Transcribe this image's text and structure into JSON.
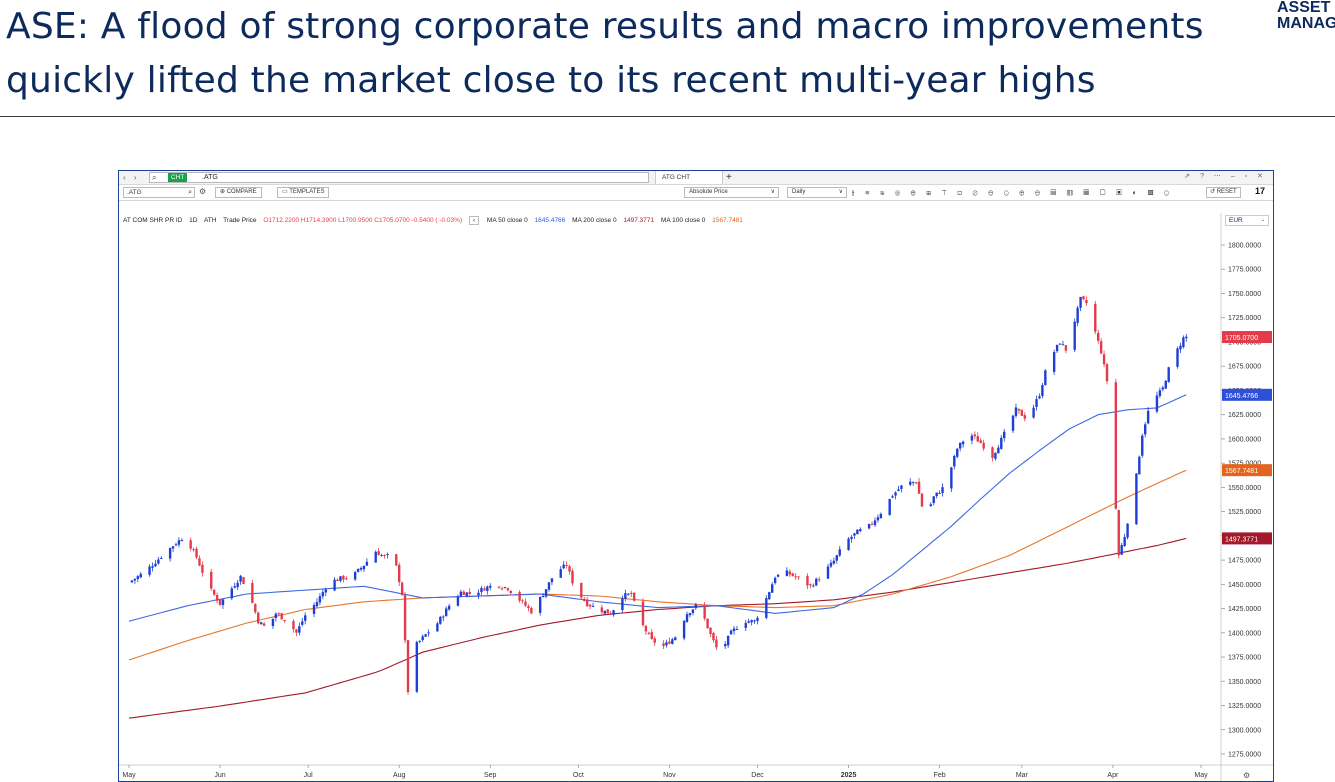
{
  "slide": {
    "title_line1": "ASE: A flood of strong corporate results and macro improvements",
    "title_line2": "quickly lifted the market close to its recent multi-year highs",
    "logo_line1": "ASSET",
    "logo_line2": "MANAG"
  },
  "terminal": {
    "nav_arrows": "‹ ›",
    "cht_tag": "CHT",
    "cht_value": ".ATG",
    "tab_label": "ATG CHT",
    "plus": "+",
    "window_controls": "⇗ ? ⋯ – ▫ ✕",
    "ticker_value": ".ATG",
    "compare_label": "COMPARE",
    "templates_label": "TEMPLATES",
    "price_mode": "Absolute Price",
    "interval": "Daily",
    "reset_label": "RESET",
    "tv_logo": "17",
    "tool_icons": "⫲ ≡ ≋ ⊜ ⊕ ⊞ ⊤ ⊡ ⊘ ⊖ ⊙ ⊕ ⊖ ▤ ▥ ▦ ▢ ▣ ◐ ▩ ⊙",
    "currency": "EUR"
  },
  "legend": {
    "instrument": "AT COM SHR PR ID",
    "interval": "1D",
    "exchange": "ATH",
    "price_type": "Trade Price",
    "ohlc": "O1712.2200  H1714.3900  L1700.9500  C1705.0700  -0.5400 ( -0.03%)",
    "ma50_label": "MA 50 close 0",
    "ma50_value": "1645.4766",
    "ma200_label": "MA 200 close 0",
    "ma200_value": "1497.3771",
    "ma100_label": "MA 100 close 0",
    "ma100_value": "1567.7481"
  },
  "colors": {
    "up": "#1e3fd6",
    "down": "#e23b4c",
    "ma50": "#4169e1",
    "ma100": "#e8762c",
    "ma200": "#a3192b",
    "last_price_tag": "#e23b4c",
    "ma50_tag": "#2e4fd8",
    "ma100_tag": "#e2641e",
    "ma200_tag": "#a3192b"
  },
  "chart_data": {
    "type": "candlestick",
    "title": "",
    "xlabel": "",
    "ylabel": "",
    "ylim": [
      1265,
      1820
    ],
    "y_ticks": [
      "1800.0000",
      "1775.0000",
      "1750.0000",
      "1725.0000",
      "1700.0000",
      "1675.0000",
      "1650.0000",
      "1625.0000",
      "1600.0000",
      "1575.0000",
      "1550.0000",
      "1525.0000",
      "1500.0000",
      "1475.0000",
      "1450.0000",
      "1425.0000",
      "1400.0000",
      "1375.0000",
      "1350.0000",
      "1325.0000",
      "1300.0000",
      "1275.0000"
    ],
    "x_labels": [
      {
        "label": "May",
        "day": 0
      },
      {
        "label": "Jun",
        "day": 31
      },
      {
        "label": "Jul",
        "day": 61
      },
      {
        "label": "Aug",
        "day": 92
      },
      {
        "label": "Sep",
        "day": 123
      },
      {
        "label": "Oct",
        "day": 153
      },
      {
        "label": "Nov",
        "day": 184
      },
      {
        "label": "Dec",
        "day": 214
      },
      {
        "label": "2025",
        "day": 245
      },
      {
        "label": "Feb",
        "day": 276
      },
      {
        "label": "Mar",
        "day": 304
      },
      {
        "label": "Apr",
        "day": 335
      },
      {
        "label": "May",
        "day": 365
      }
    ],
    "close_anchors": [
      [
        0,
        1452
      ],
      [
        5,
        1462
      ],
      [
        10,
        1476
      ],
      [
        15,
        1490
      ],
      [
        19,
        1500
      ],
      [
        23,
        1478
      ],
      [
        27,
        1448
      ],
      [
        31,
        1430
      ],
      [
        35,
        1446
      ],
      [
        38,
        1458
      ],
      [
        41,
        1440
      ],
      [
        44,
        1412
      ],
      [
        47,
        1404
      ],
      [
        50,
        1420
      ],
      [
        54,
        1412
      ],
      [
        57,
        1400
      ],
      [
        60,
        1418
      ],
      [
        64,
        1432
      ],
      [
        68,
        1452
      ],
      [
        72,
        1456
      ],
      [
        76,
        1458
      ],
      [
        80,
        1470
      ],
      [
        84,
        1484
      ],
      [
        87,
        1478
      ],
      [
        90,
        1482
      ],
      [
        93,
        1440
      ],
      [
        95,
        1340
      ],
      [
        97,
        1385
      ],
      [
        101,
        1398
      ],
      [
        105,
        1410
      ],
      [
        109,
        1428
      ],
      [
        113,
        1442
      ],
      [
        117,
        1440
      ],
      [
        121,
        1446
      ],
      [
        125,
        1450
      ],
      [
        129,
        1446
      ],
      [
        133,
        1434
      ],
      [
        137,
        1422
      ],
      [
        141,
        1440
      ],
      [
        145,
        1462
      ],
      [
        149,
        1470
      ],
      [
        152,
        1444
      ],
      [
        156,
        1430
      ],
      [
        160,
        1424
      ],
      [
        164,
        1420
      ],
      [
        168,
        1438
      ],
      [
        171,
        1440
      ],
      [
        174,
        1412
      ],
      [
        178,
        1392
      ],
      [
        182,
        1386
      ],
      [
        186,
        1396
      ],
      [
        190,
        1420
      ],
      [
        194,
        1430
      ],
      [
        198,
        1398
      ],
      [
        201,
        1378
      ],
      [
        205,
        1400
      ],
      [
        209,
        1412
      ],
      [
        213,
        1412
      ],
      [
        216,
        1428
      ],
      [
        220,
        1458
      ],
      [
        224,
        1462
      ],
      [
        228,
        1456
      ],
      [
        232,
        1448
      ],
      [
        236,
        1460
      ],
      [
        240,
        1474
      ],
      [
        244,
        1494
      ],
      [
        248,
        1504
      ],
      [
        252,
        1510
      ],
      [
        256,
        1524
      ],
      [
        260,
        1542
      ],
      [
        264,
        1554
      ],
      [
        268,
        1556
      ],
      [
        271,
        1518
      ],
      [
        274,
        1540
      ],
      [
        278,
        1552
      ],
      [
        282,
        1590
      ],
      [
        286,
        1606
      ],
      [
        290,
        1596
      ],
      [
        294,
        1582
      ],
      [
        298,
        1605
      ],
      [
        302,
        1630
      ],
      [
        306,
        1620
      ],
      [
        310,
        1646
      ],
      [
        313,
        1680
      ],
      [
        317,
        1700
      ],
      [
        319,
        1692
      ],
      [
        322,
        1722
      ],
      [
        324,
        1744
      ],
      [
        326,
        1740
      ],
      [
        329,
        1710
      ],
      [
        331,
        1690
      ],
      [
        333,
        1660
      ],
      [
        335,
        1576
      ],
      [
        337,
        1480
      ],
      [
        339,
        1500
      ],
      [
        341,
        1530
      ],
      [
        343,
        1562
      ],
      [
        345,
        1605
      ],
      [
        347,
        1628
      ],
      [
        349,
        1640
      ],
      [
        352,
        1652
      ],
      [
        354,
        1672
      ],
      [
        357,
        1692
      ],
      [
        359,
        1704
      ],
      [
        360,
        1705.07
      ]
    ],
    "ma50": [
      [
        0,
        1412
      ],
      [
        20,
        1428
      ],
      [
        40,
        1440
      ],
      [
        60,
        1444
      ],
      [
        80,
        1448
      ],
      [
        90,
        1442
      ],
      [
        100,
        1436
      ],
      [
        120,
        1438
      ],
      [
        140,
        1440
      ],
      [
        160,
        1432
      ],
      [
        180,
        1426
      ],
      [
        200,
        1428
      ],
      [
        220,
        1420
      ],
      [
        240,
        1426
      ],
      [
        250,
        1440
      ],
      [
        260,
        1460
      ],
      [
        270,
        1485
      ],
      [
        280,
        1510
      ],
      [
        290,
        1538
      ],
      [
        300,
        1565
      ],
      [
        310,
        1588
      ],
      [
        320,
        1610
      ],
      [
        330,
        1625
      ],
      [
        340,
        1630
      ],
      [
        350,
        1632
      ],
      [
        360,
        1645.48
      ]
    ],
    "ma100": [
      [
        0,
        1372
      ],
      [
        20,
        1392
      ],
      [
        40,
        1410
      ],
      [
        60,
        1424
      ],
      [
        80,
        1432
      ],
      [
        100,
        1436
      ],
      [
        120,
        1438
      ],
      [
        140,
        1440
      ],
      [
        160,
        1438
      ],
      [
        180,
        1432
      ],
      [
        200,
        1428
      ],
      [
        220,
        1426
      ],
      [
        240,
        1428
      ],
      [
        260,
        1440
      ],
      [
        280,
        1458
      ],
      [
        300,
        1480
      ],
      [
        320,
        1510
      ],
      [
        340,
        1540
      ],
      [
        350,
        1554
      ],
      [
        360,
        1567.75
      ]
    ],
    "ma200": [
      [
        0,
        1312
      ],
      [
        30,
        1324
      ],
      [
        60,
        1338
      ],
      [
        85,
        1360
      ],
      [
        100,
        1380
      ],
      [
        120,
        1395
      ],
      [
        140,
        1408
      ],
      [
        160,
        1418
      ],
      [
        180,
        1424
      ],
      [
        200,
        1428
      ],
      [
        220,
        1430
      ],
      [
        240,
        1434
      ],
      [
        260,
        1442
      ],
      [
        280,
        1452
      ],
      [
        300,
        1462
      ],
      [
        320,
        1472
      ],
      [
        340,
        1484
      ],
      [
        350,
        1490
      ],
      [
        360,
        1497.38
      ]
    ],
    "last_values": {
      "close": "1705.0700",
      "ma50": "1645.4766",
      "ma100": "1567.7481",
      "ma200": "1497.3771"
    }
  }
}
